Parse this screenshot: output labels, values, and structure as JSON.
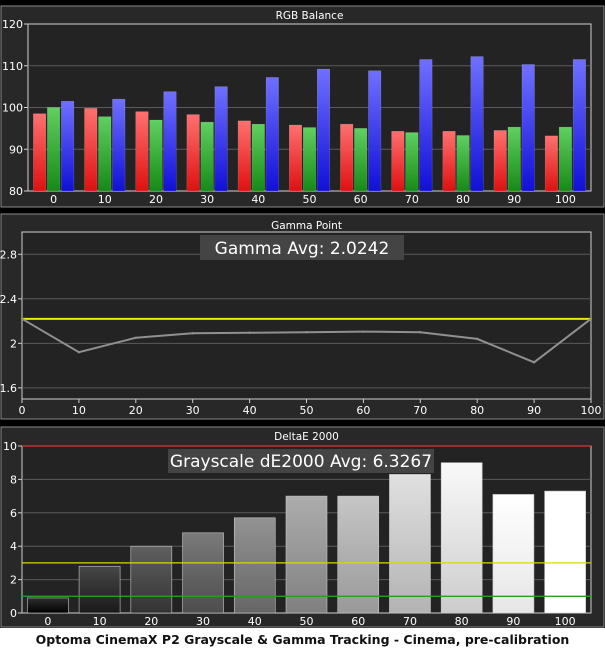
{
  "caption": "Optoma CinemaX P2 Grayscale & Gamma Tracking - Cinema, pre-calibration",
  "chart_data": [
    {
      "type": "bar",
      "title": "RGB Balance",
      "categories": [
        "0",
        "10",
        "20",
        "30",
        "40",
        "50",
        "60",
        "70",
        "80",
        "90",
        "100"
      ],
      "ylim": [
        80,
        120
      ],
      "yticks": [
        "80",
        "90",
        "100",
        "110",
        "120"
      ],
      "grid": true,
      "series": [
        {
          "color": "#ff3030",
          "values": [
            98.5,
            99.8,
            99.0,
            98.3,
            96.8,
            95.8,
            96.0,
            94.3,
            94.3,
            94.5,
            93.2
          ]
        },
        {
          "color": "#30b030",
          "values": [
            100.0,
            97.8,
            97.0,
            96.5,
            96.0,
            95.2,
            95.0,
            94.0,
            93.3,
            95.3,
            95.3
          ]
        },
        {
          "color": "#3a3aff",
          "values": [
            101.5,
            102.0,
            103.8,
            105.0,
            107.2,
            109.2,
            108.8,
            111.5,
            112.2,
            110.3,
            111.5
          ]
        }
      ]
    },
    {
      "type": "line",
      "title": "Gamma Point",
      "annotation": "Gamma Avg: 2.0242",
      "x": [
        0,
        10,
        20,
        30,
        40,
        50,
        60,
        70,
        80,
        90,
        100
      ],
      "xticks": [
        "0",
        "10",
        "20",
        "30",
        "40",
        "50",
        "60",
        "70",
        "80",
        "90",
        "100"
      ],
      "xlim": [
        0,
        100
      ],
      "ylim": [
        1.5,
        3.0
      ],
      "yticks": [
        "1.6",
        "2",
        "2.4",
        "2.8"
      ],
      "grid": true,
      "series": [
        {
          "color": "#909090",
          "values": [
            2.22,
            1.92,
            2.05,
            2.09,
            2.095,
            2.1,
            2.105,
            2.1,
            2.04,
            1.83,
            2.22
          ]
        }
      ],
      "reference": {
        "value": 2.22,
        "color": "#e8e800"
      }
    },
    {
      "type": "bar",
      "title": "DeltaE 2000",
      "annotation": "Grayscale dE2000 Avg: 6.3267",
      "categories": [
        "0",
        "10",
        "20",
        "30",
        "40",
        "50",
        "60",
        "70",
        "80",
        "90",
        "100"
      ],
      "ylim": [
        0,
        10
      ],
      "yticks": [
        "0",
        "2",
        "4",
        "6",
        "8",
        "10"
      ],
      "grid": true,
      "values": [
        0.9,
        2.8,
        4.0,
        4.8,
        5.7,
        7.0,
        7.0,
        8.3,
        9.0,
        7.1,
        7.3
      ],
      "references": [
        {
          "value": 10,
          "color": "#e03030"
        },
        {
          "value": 3,
          "color": "#d8d800"
        },
        {
          "value": 1,
          "color": "#2a9a2a"
        }
      ]
    }
  ]
}
